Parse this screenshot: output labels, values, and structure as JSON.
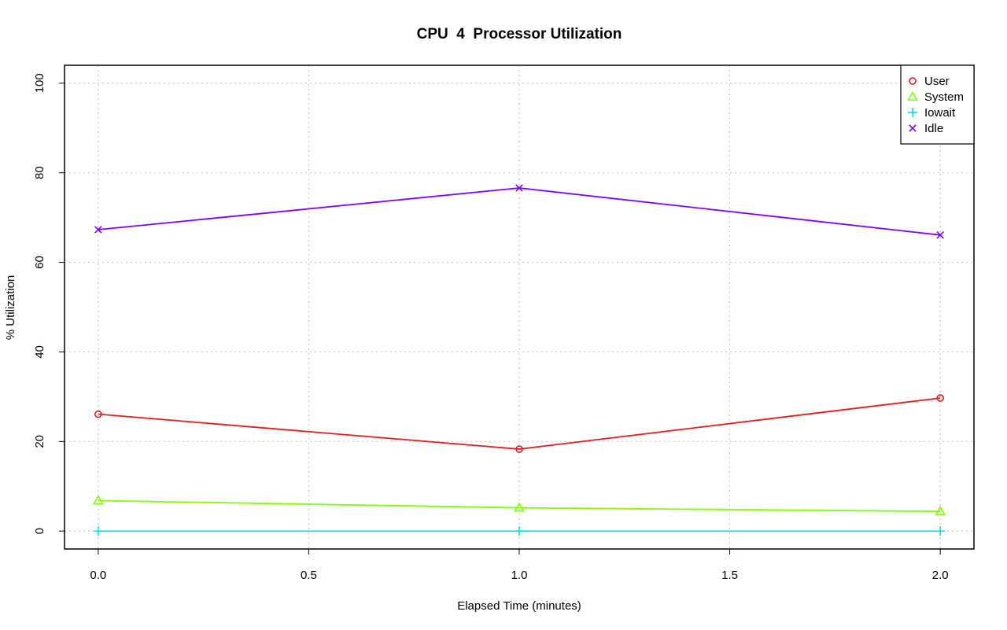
{
  "chart_data": {
    "type": "line",
    "title": "CPU  4  Processor Utilization",
    "xlabel": "Elapsed Time (minutes)",
    "ylabel": "% Utilization",
    "xlim": [
      -0.08,
      2.08
    ],
    "ylim": [
      -4,
      104
    ],
    "x_ticks": [
      0.0,
      0.5,
      1.0,
      1.5,
      2.0
    ],
    "x_tick_labels": [
      "0.0",
      "0.5",
      "1.0",
      "1.5",
      "2.0"
    ],
    "y_ticks": [
      0,
      20,
      40,
      60,
      80,
      100
    ],
    "y_tick_labels": [
      "0",
      "20",
      "40",
      "60",
      "80",
      "100"
    ],
    "grid": true,
    "legend_position": "top-right",
    "x": [
      0.0,
      1.0,
      2.0
    ],
    "series": [
      {
        "name": "User",
        "values": [
          26.1,
          18.3,
          29.7
        ],
        "color": "#e41a1c",
        "marker": "circle"
      },
      {
        "name": "System",
        "values": [
          6.8,
          5.2,
          4.4
        ],
        "color": "#80ff00",
        "marker": "triangle"
      },
      {
        "name": "Iowait",
        "values": [
          0.0,
          0.0,
          0.0
        ],
        "color": "#00e5e5",
        "marker": "plus"
      },
      {
        "name": "Idle",
        "values": [
          67.3,
          76.6,
          66.1
        ],
        "color": "#8000ff",
        "marker": "cross"
      }
    ]
  }
}
